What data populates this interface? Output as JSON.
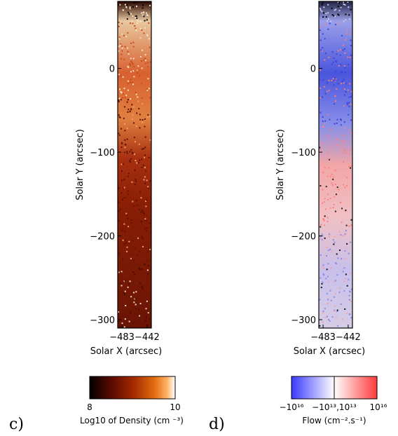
{
  "chart_data": [
    {
      "type": "heatmap",
      "panel_label": "c)",
      "xlabel": "Solar X (arcsec)",
      "ylabel": "Solar Y (arcsec)",
      "x_ticks": [
        "−483",
        "−442"
      ],
      "y_ticks": [
        "0",
        "−100",
        "−200",
        "−300"
      ],
      "x_tick_values": [
        -483,
        -442
      ],
      "y_tick_values": [
        0,
        -100,
        -200,
        -300
      ],
      "ylim": [
        -310,
        80
      ],
      "colormap": "black-red-orange-white",
      "colorbar": {
        "label": "Log10 of Density (cm ⁻³)",
        "ticks": [
          "8",
          "10"
        ],
        "range": [
          8,
          10
        ]
      }
    },
    {
      "type": "heatmap",
      "panel_label": "d)",
      "xlabel": "Solar X (arcsec)",
      "ylabel": "Solar Y (arcsec)",
      "x_ticks": [
        "−483",
        "−442"
      ],
      "y_ticks": [
        "0",
        "−100",
        "−200",
        "−300"
      ],
      "x_tick_values": [
        -483,
        -442
      ],
      "y_tick_values": [
        0,
        -100,
        -200,
        -300
      ],
      "ylim": [
        -310,
        80
      ],
      "colormap": "blue-white-red",
      "colorbar": {
        "label": "Flow (cm⁻².s⁻¹)",
        "ticks": [
          "−10¹⁶",
          "−10¹³,10¹³",
          "10¹⁶"
        ]
      }
    }
  ],
  "colors": {
    "density_stops": [
      "#000000",
      "#5a0a00",
      "#a02800",
      "#e06a10",
      "#ffb060",
      "#ffffff"
    ],
    "flow_neg": "#3a3aff",
    "flow_mid": "#ffffff",
    "flow_pos": "#ff3a3a"
  }
}
